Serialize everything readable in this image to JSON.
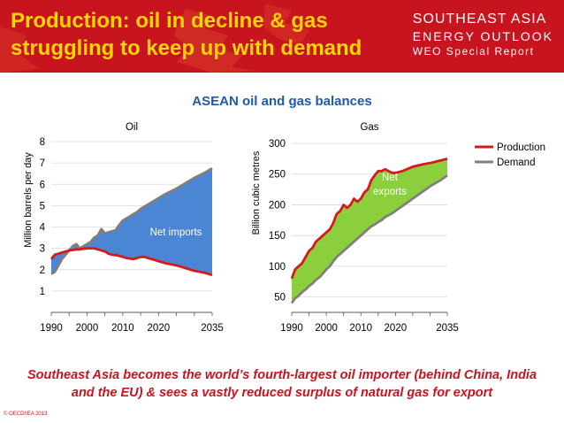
{
  "header": {
    "title_line1": "Production: oil in decline & gas",
    "title_line2": "struggling to keep up with demand",
    "brand_line1": "SOUTHEAST ASIA",
    "brand_line2": "ENERGY OUTLOOK",
    "brand_line3": "WEO Special Report"
  },
  "main_title": "ASEAN oil and gas balances",
  "caption": {
    "line1": "Southeast Asia becomes the world’s fourth-largest oil importer (behind China, India",
    "line2": "and the EU) & sees a vastly reduced surplus of natural gas for export"
  },
  "footer": "© OECD/IEA 2013",
  "colors": {
    "header_bg": "#c8141e",
    "title_yellow": "#ffd400",
    "production": "#d7191c",
    "demand": "#7f7f7f",
    "net_imports_fill": "#4a86d4",
    "net_exports_fill": "#8ccf3c",
    "accent_blue": "#1f5aa6"
  },
  "chart_data": [
    {
      "type": "area",
      "title": "Oil",
      "ylabel": "Million barrels per day",
      "xlabel": "",
      "xlim": [
        1990,
        2035
      ],
      "ylim": [
        0,
        8
      ],
      "xticks": [
        1990,
        2000,
        2010,
        2020,
        2035
      ],
      "yticks": [
        1,
        2,
        3,
        4,
        5,
        6,
        7,
        8
      ],
      "grid": true,
      "area_label": "Net imports",
      "series": [
        {
          "name": "Production",
          "x": [
            1990,
            1991,
            1992,
            1993,
            1994,
            1995,
            1996,
            1997,
            1998,
            1999,
            2000,
            2001,
            2002,
            2003,
            2004,
            2005,
            2006,
            2007,
            2008,
            2009,
            2010,
            2011,
            2012,
            2013,
            2014,
            2015,
            2016,
            2017,
            2018,
            2019,
            2020,
            2022,
            2025,
            2028,
            2030,
            2033,
            2035
          ],
          "y": [
            2.5,
            2.7,
            2.75,
            2.8,
            2.85,
            2.9,
            2.92,
            2.95,
            2.95,
            2.98,
            3.0,
            3.0,
            3.0,
            2.95,
            2.9,
            2.85,
            2.75,
            2.7,
            2.68,
            2.65,
            2.6,
            2.55,
            2.52,
            2.5,
            2.55,
            2.6,
            2.6,
            2.55,
            2.5,
            2.45,
            2.4,
            2.3,
            2.2,
            2.05,
            1.95,
            1.85,
            1.75
          ]
        },
        {
          "name": "Demand",
          "x": [
            1990,
            1991,
            1992,
            1993,
            1994,
            1995,
            1996,
            1997,
            1998,
            1999,
            2000,
            2001,
            2002,
            2003,
            2004,
            2005,
            2006,
            2007,
            2008,
            2009,
            2010,
            2011,
            2012,
            2013,
            2014,
            2015,
            2016,
            2017,
            2018,
            2019,
            2020,
            2022,
            2025,
            2028,
            2030,
            2033,
            2035
          ],
          "y": [
            1.8,
            1.9,
            2.2,
            2.5,
            2.7,
            2.9,
            3.1,
            3.2,
            3.0,
            3.1,
            3.2,
            3.3,
            3.5,
            3.6,
            3.9,
            3.7,
            3.75,
            3.8,
            3.85,
            4.1,
            4.3,
            4.4,
            4.5,
            4.6,
            4.7,
            4.85,
            4.95,
            5.05,
            5.15,
            5.25,
            5.35,
            5.55,
            5.8,
            6.1,
            6.3,
            6.55,
            6.75
          ]
        }
      ]
    },
    {
      "type": "area",
      "title": "Gas",
      "ylabel": "Billion cubic metres",
      "xlabel": "",
      "xlim": [
        1990,
        2035
      ],
      "ylim": [
        25,
        300
      ],
      "xticks": [
        1990,
        2000,
        2010,
        2020,
        2035
      ],
      "yticks": [
        50,
        100,
        150,
        200,
        250,
        300
      ],
      "grid": true,
      "area_label": "Net exports",
      "legend": [
        "Production",
        "Demand"
      ],
      "legend_position": "right",
      "series": [
        {
          "name": "Production",
          "x": [
            1990,
            1991,
            1992,
            1993,
            1994,
            1995,
            1996,
            1997,
            1998,
            1999,
            2000,
            2001,
            2002,
            2003,
            2004,
            2005,
            2006,
            2007,
            2008,
            2009,
            2010,
            2011,
            2012,
            2013,
            2014,
            2015,
            2016,
            2017,
            2018,
            2019,
            2020,
            2022,
            2025,
            2028,
            2030,
            2033,
            2035
          ],
          "y": [
            80,
            95,
            100,
            105,
            115,
            125,
            130,
            140,
            145,
            150,
            155,
            160,
            170,
            185,
            190,
            200,
            195,
            200,
            210,
            205,
            210,
            220,
            225,
            240,
            248,
            255,
            255,
            258,
            255,
            252,
            252,
            255,
            262,
            266,
            268,
            272,
            275
          ]
        },
        {
          "name": "Demand",
          "x": [
            1990,
            1991,
            1992,
            1993,
            1994,
            1995,
            1996,
            1997,
            1998,
            1999,
            2000,
            2001,
            2002,
            2003,
            2004,
            2005,
            2006,
            2007,
            2008,
            2009,
            2010,
            2011,
            2012,
            2013,
            2014,
            2015,
            2016,
            2017,
            2018,
            2019,
            2020,
            2022,
            2025,
            2028,
            2030,
            2033,
            2035
          ],
          "y": [
            40,
            48,
            52,
            58,
            62,
            68,
            72,
            78,
            82,
            88,
            95,
            100,
            108,
            115,
            120,
            125,
            130,
            135,
            140,
            145,
            150,
            155,
            160,
            165,
            168,
            172,
            175,
            180,
            183,
            186,
            190,
            198,
            210,
            222,
            230,
            240,
            248
          ]
        }
      ]
    }
  ]
}
